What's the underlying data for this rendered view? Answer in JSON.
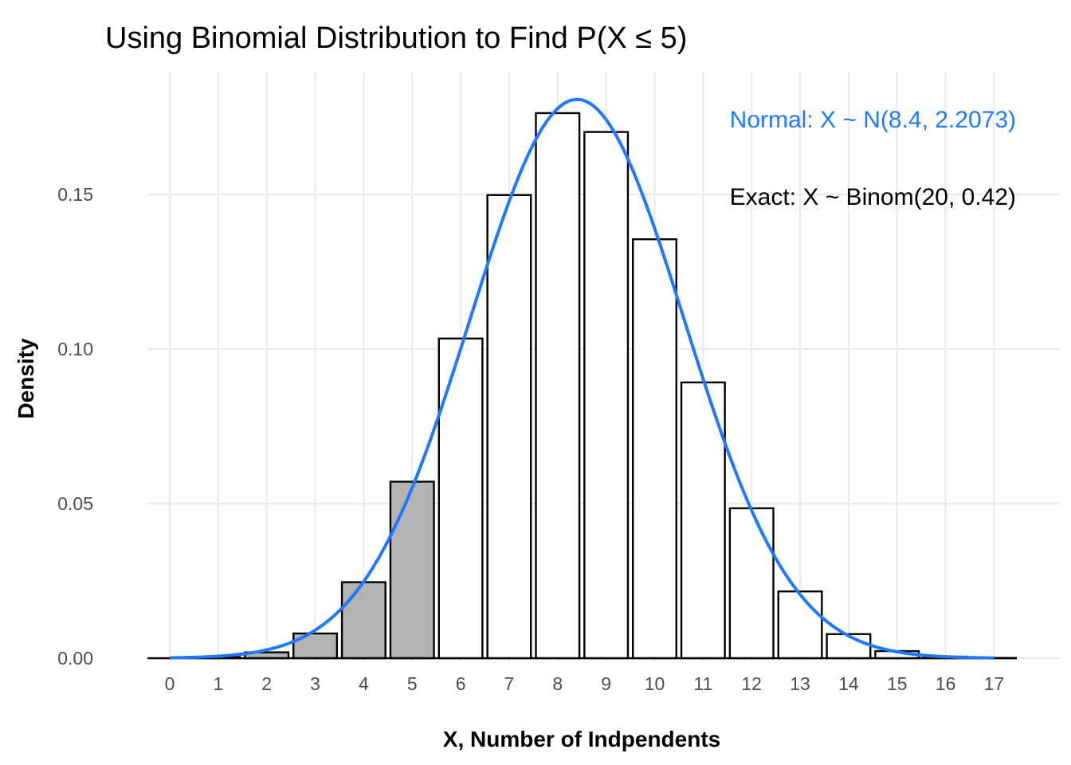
{
  "chart_data": {
    "type": "bar",
    "title": "Using Binomial Distribution to Find P(X ≤ 5)",
    "xlabel": "X, Number of Indpendents",
    "ylabel": "Density",
    "xlim": [
      -0.5,
      17.5
    ],
    "ylim": [
      0,
      0.18
    ],
    "x_ticks": [
      "0",
      "1",
      "2",
      "3",
      "4",
      "5",
      "6",
      "7",
      "8",
      "9",
      "10",
      "11",
      "12",
      "13",
      "14",
      "15",
      "16",
      "17"
    ],
    "y_ticks": [
      "0.00",
      "0.05",
      "0.10",
      "0.15"
    ],
    "grid": true,
    "series": [
      {
        "name": "Exact: X ~ Binom(20, 0.42)",
        "x": [
          0,
          1,
          2,
          3,
          4,
          5,
          6,
          7,
          8,
          9,
          10,
          11,
          12,
          13,
          14,
          15,
          16,
          17
        ],
        "values": [
          0.0,
          0.0004,
          0.0019,
          0.008,
          0.0246,
          0.0571,
          0.1034,
          0.1498,
          0.1763,
          0.1702,
          0.1355,
          0.0892,
          0.0485,
          0.0216,
          0.0078,
          0.0023,
          0.0005,
          0.0001
        ],
        "highlight_upto": 5,
        "fill_highlight": "#b3b3b3",
        "fill_default": "#ffffff",
        "color": "#000000"
      },
      {
        "name": "Normal: X ~ N(8.4, 2.2073)",
        "type": "line",
        "mean": 8.4,
        "sd": 2.2073,
        "x_range": [
          0,
          17
        ],
        "color": "#1f78ff"
      }
    ],
    "annotations": [
      {
        "text": "Normal: X ~ N(8.4, 2.2073)",
        "color": "#1f78ff"
      },
      {
        "text": "Exact: X ~ Binom(20, 0.42)",
        "color": "#000000"
      }
    ]
  }
}
